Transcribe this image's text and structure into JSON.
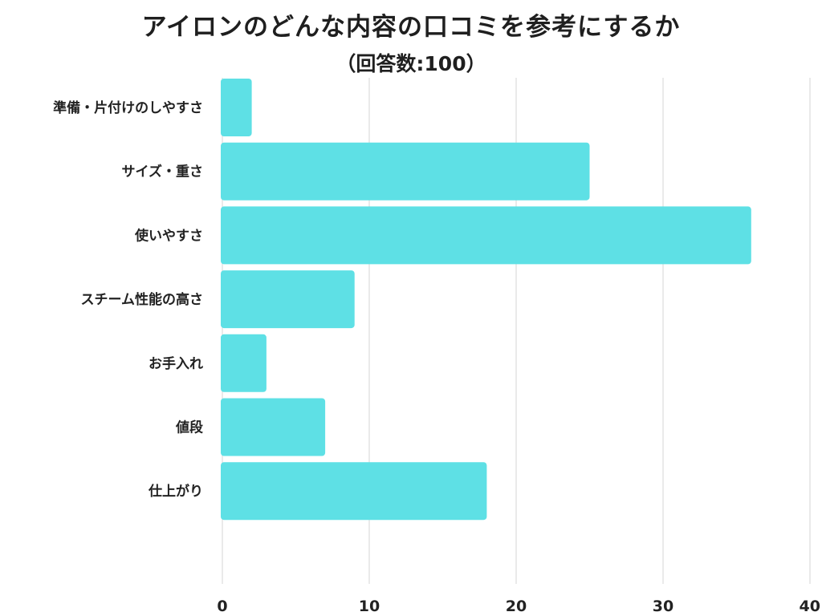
{
  "chart_data": {
    "type": "bar",
    "orientation": "horizontal",
    "title": "アイロンのどんな内容の口コミを参考にするか",
    "subtitle": "（回答数:100）",
    "categories": [
      "準備・片付けのしやすさ",
      "サイズ・重さ",
      "使いやすさ",
      "スチーム性能の高さ",
      "お手入れ",
      "値段",
      "仕上がり"
    ],
    "values": [
      2,
      25,
      36,
      9,
      3,
      7,
      18
    ],
    "xlim": [
      0,
      40
    ],
    "xticks": [
      "0",
      "10",
      "20",
      "30",
      "40"
    ],
    "grid": true,
    "bar_color": "#5ee0e5",
    "grid_color": "#dddddd"
  }
}
